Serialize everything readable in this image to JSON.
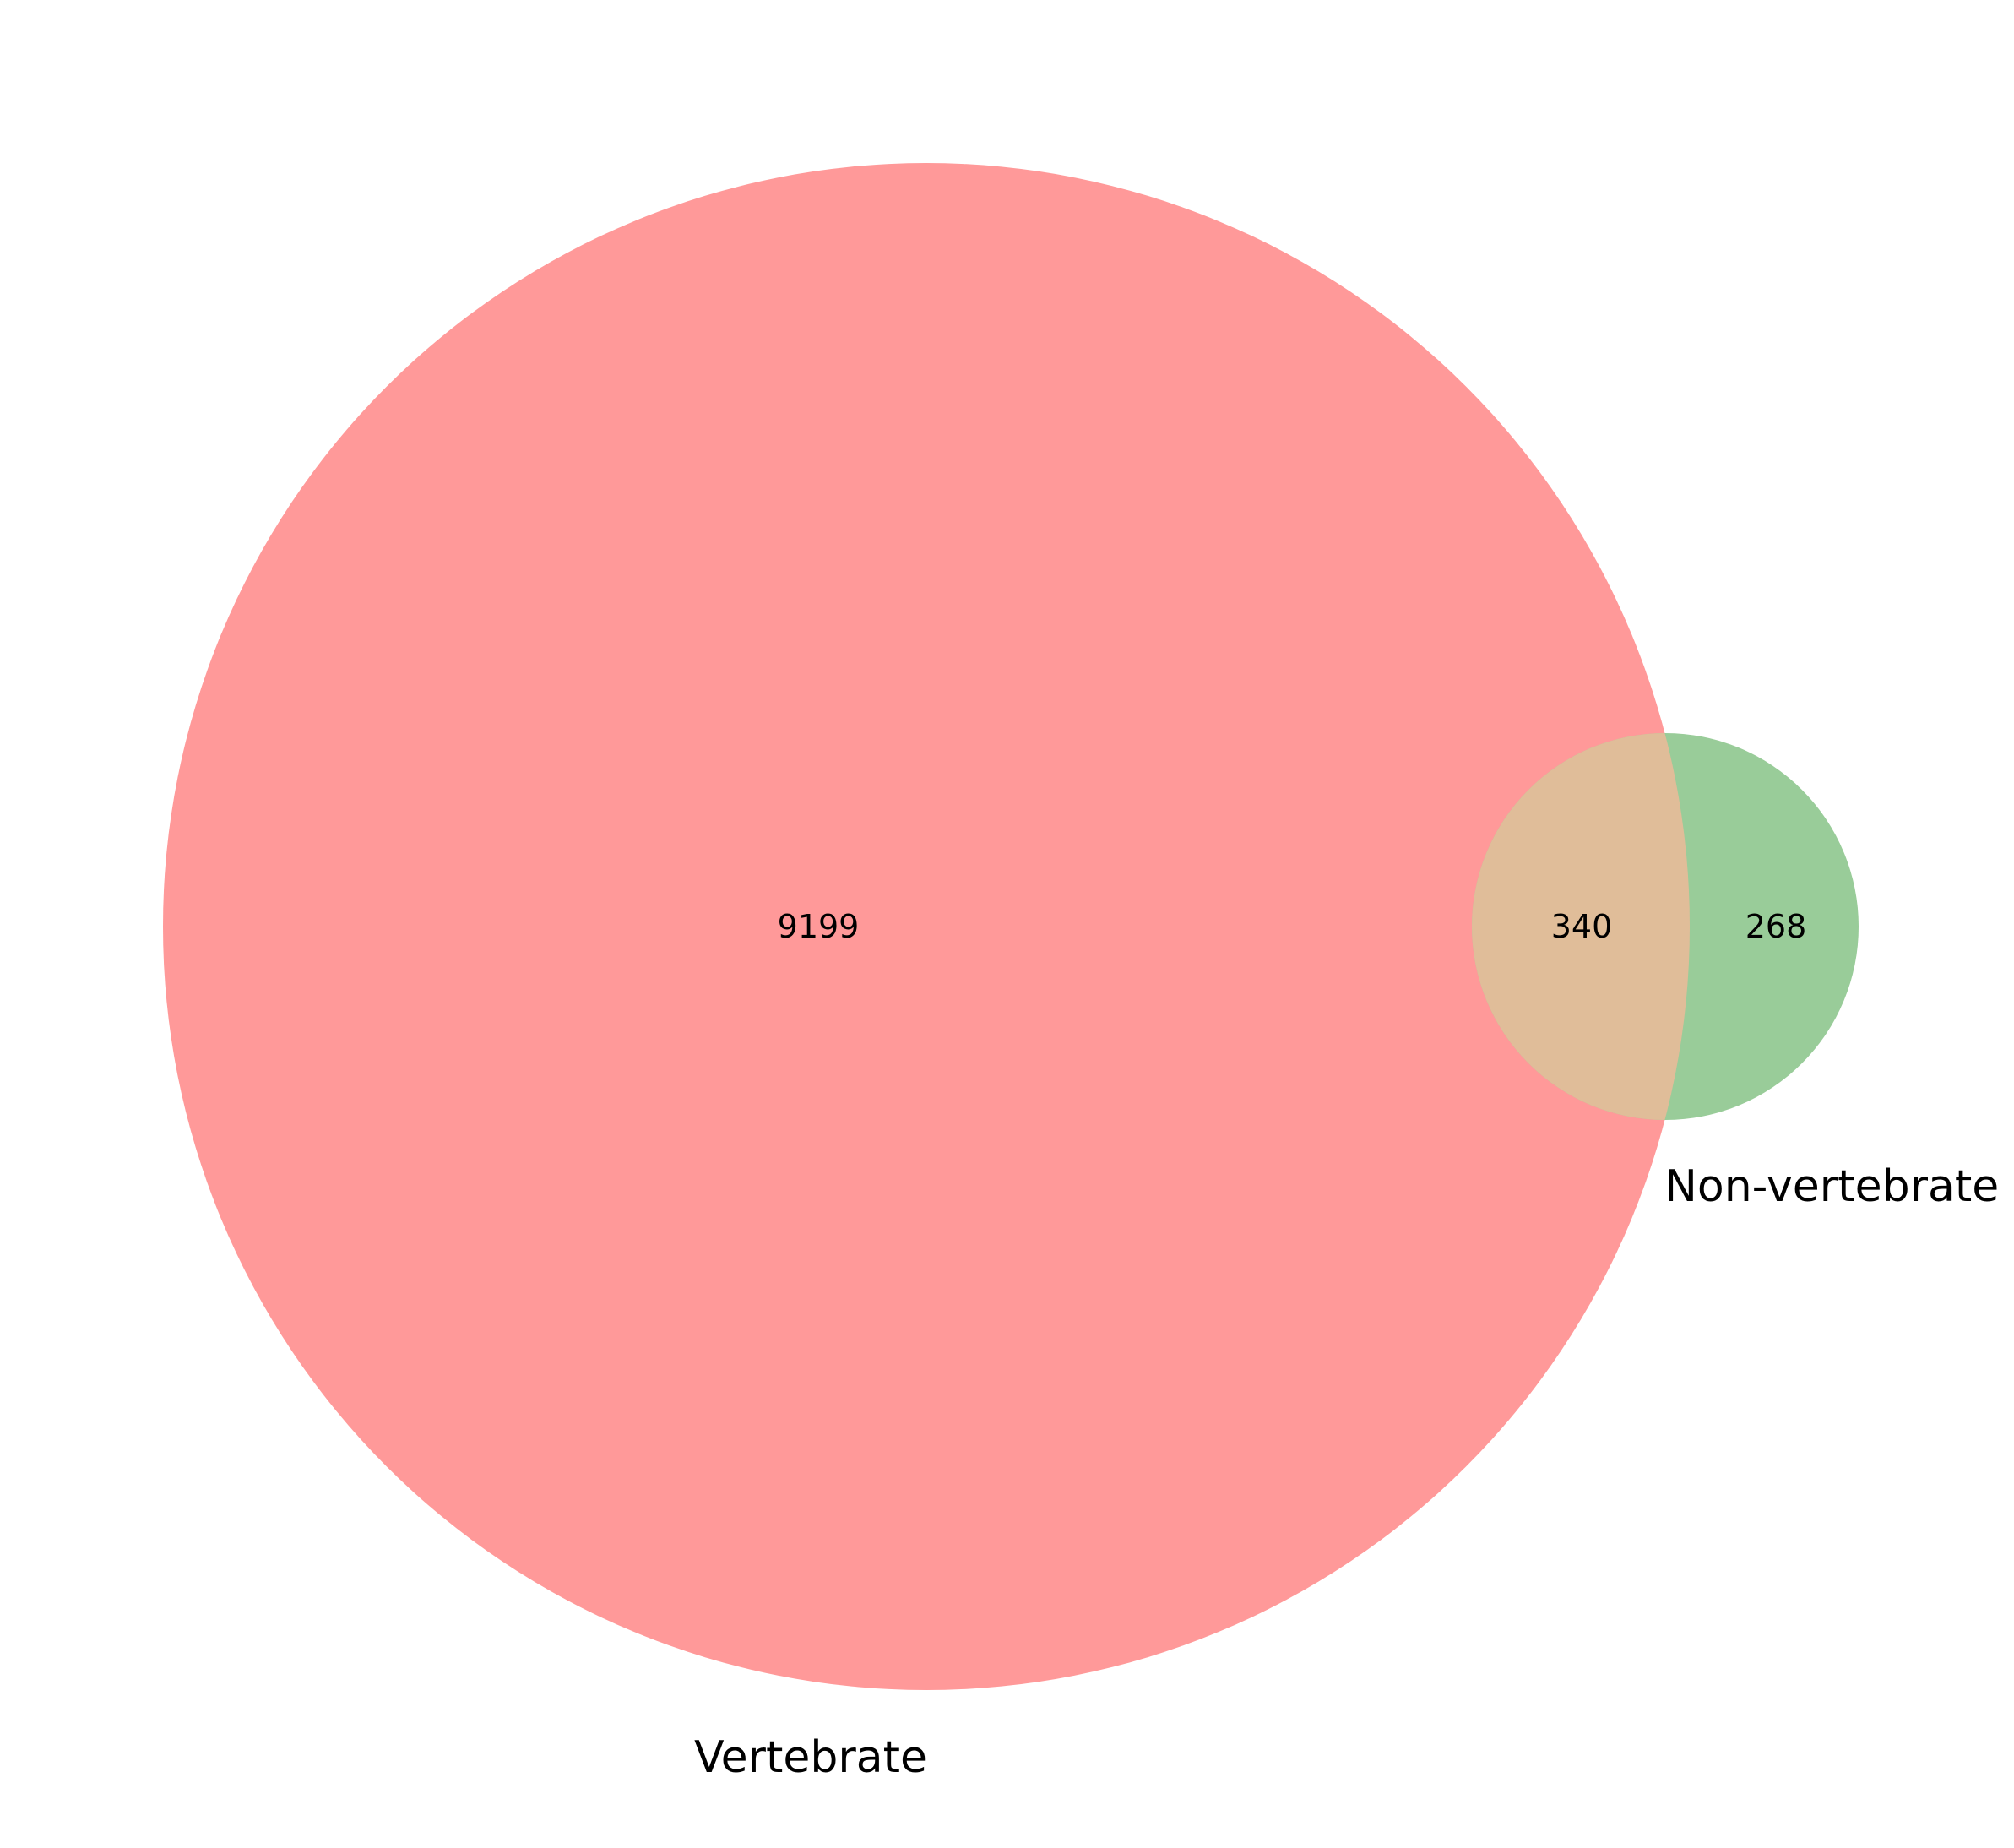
{
  "chart_data": {
    "type": "venn",
    "sets": [
      {
        "label": "Vertebrate",
        "color": "#ff9999"
      },
      {
        "label": "Non-vertebrate",
        "color": "#99cc99"
      }
    ],
    "regions": {
      "vertebrate_only": 9199,
      "intersection": 340,
      "non_vertebrate_only": 268
    },
    "intersection_color": "#e0bd99"
  }
}
